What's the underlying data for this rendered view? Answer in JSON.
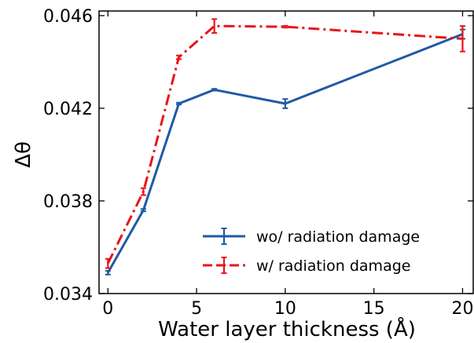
{
  "chart_data": {
    "type": "line",
    "xlabel": "Water layer thickness (Å)",
    "ylabel": "Δθ",
    "xlim": [
      -0.5,
      20.6
    ],
    "ylim": [
      0.034,
      0.0462
    ],
    "x_ticks": [
      0,
      5,
      10,
      15,
      20
    ],
    "x_tick_labels": [
      "0",
      "5",
      "10",
      "15",
      "20"
    ],
    "y_ticks": [
      0.034,
      0.038,
      0.042,
      0.046
    ],
    "y_tick_labels": [
      "0.034",
      "0.038",
      "0.042",
      "0.046"
    ],
    "grid": false,
    "legend_position": "lower-right",
    "series": [
      {
        "name": "wo/ radiation damage",
        "color": "#1f5aa6",
        "line_style": "solid",
        "x": [
          0,
          2,
          4,
          6,
          10,
          20
        ],
        "y": [
          0.0349,
          0.0376,
          0.0422,
          0.0428,
          0.0422,
          0.0452
        ],
        "err": [
          8e-05,
          5e-05,
          4e-05,
          4e-05,
          0.0002,
          0.0002
        ]
      },
      {
        "name": "w/ radiation damage",
        "color": "#e8141b",
        "line_style": "dashdot",
        "x": [
          0,
          2,
          4,
          6,
          10,
          20
        ],
        "y": [
          0.0353,
          0.0384,
          0.0442,
          0.04555,
          0.04552,
          0.045
        ],
        "err": [
          0.0002,
          0.00015,
          8e-05,
          0.0003,
          4e-05,
          0.00055
        ]
      }
    ]
  }
}
